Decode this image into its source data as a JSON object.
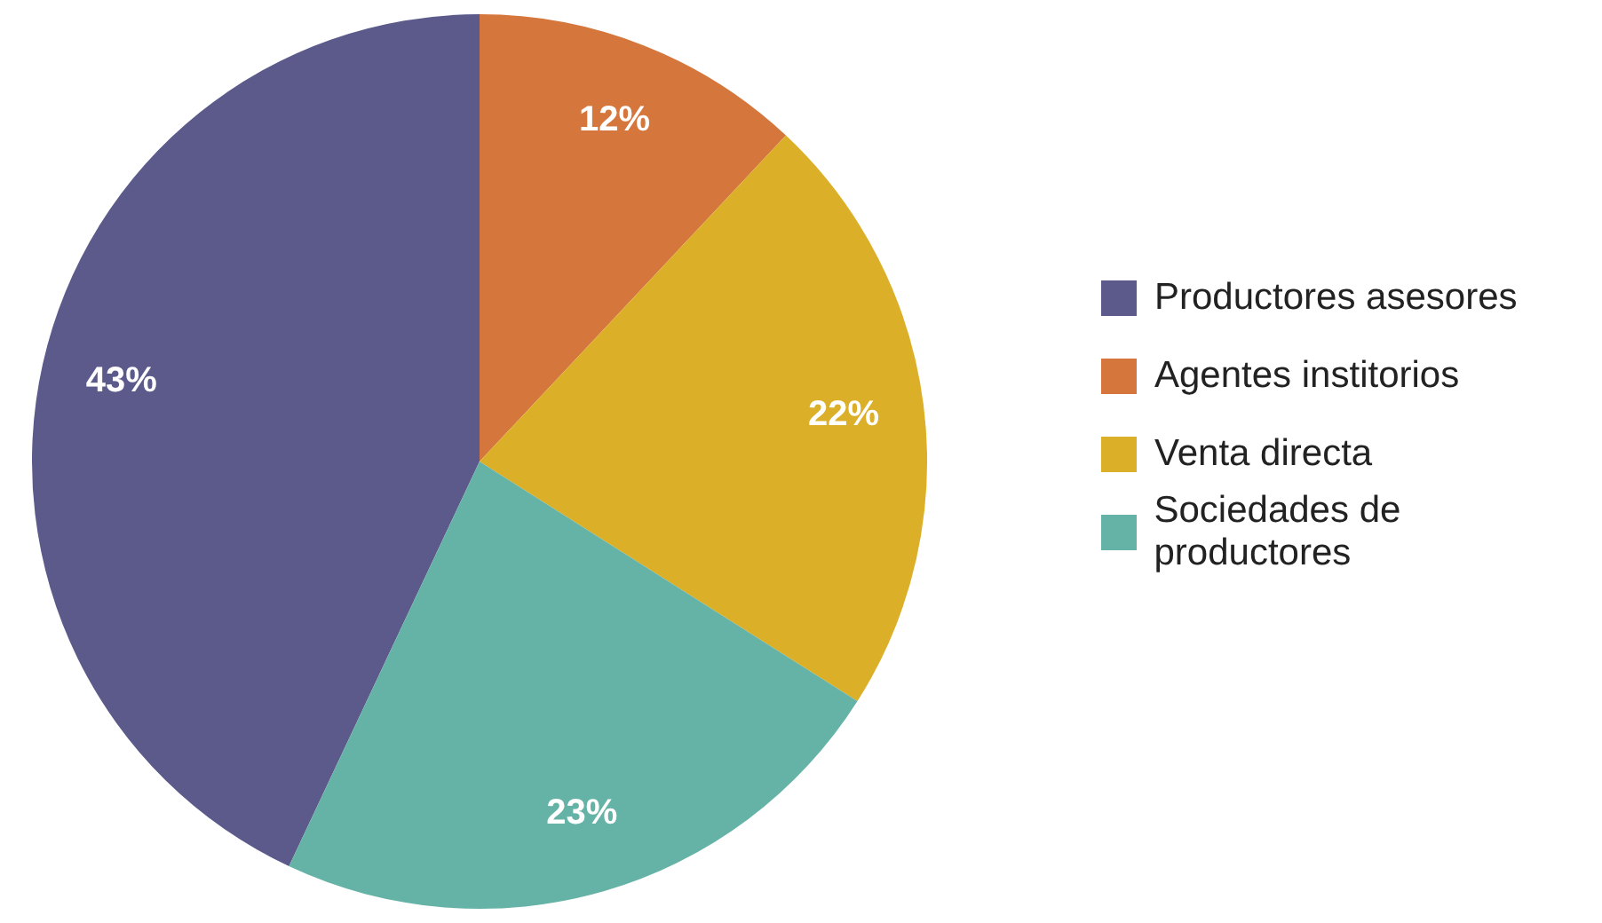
{
  "chart_data": {
    "type": "pie",
    "categories": [
      "Productores asesores",
      "Agentes institorios",
      "Venta directa",
      "Sociedades de productores"
    ],
    "values": [
      43,
      12,
      22,
      23
    ],
    "colors": [
      "#5b5a8b",
      "#d5773c",
      "#dbaf27",
      "#65b3a6"
    ],
    "value_labels": [
      "43%",
      "12%",
      "22%",
      "23%"
    ],
    "legend": "right"
  }
}
